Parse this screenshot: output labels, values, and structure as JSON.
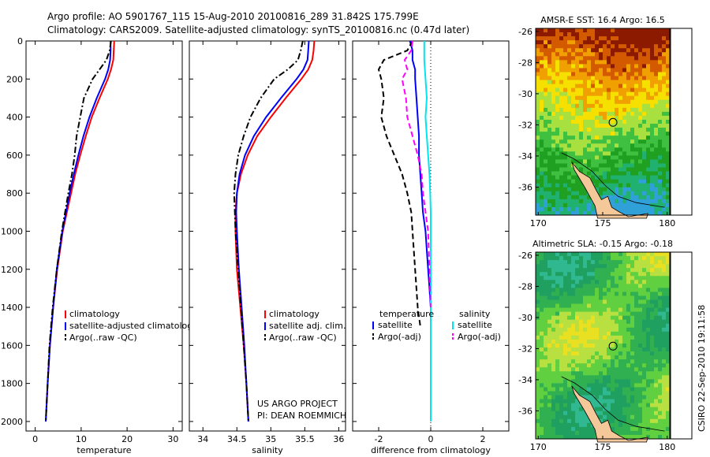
{
  "header": {
    "line1": "Argo profile: AO 5901767_115 15-Aug-2010 20100816_289 31.842S 175.799E",
    "line2": "Climatology: CARS2009. Satellite-adjusted climatology: synTS_20100816.nc (0.47d later)"
  },
  "credits": {
    "project": "US ARGO PROJECT",
    "pi": "PI: DEAN ROEMMICH",
    "stamp": "CSIRO 22-Sep-2010 19:11:58"
  },
  "colors": {
    "climatology": "#ff0000",
    "satellite": "#0000ff",
    "argo": "#000000",
    "sal_sat": "#00e5ee",
    "sal_argo": "#ff00ff"
  },
  "chart_data": [
    {
      "type": "line",
      "xlabel": "temperature",
      "x_ticks": [
        "0",
        "10",
        "20",
        "30"
      ],
      "y_ticks": [
        "0",
        "200",
        "400",
        "600",
        "800",
        "1000",
        "1200",
        "1400",
        "1600",
        "1800",
        "2000"
      ],
      "xlim": [
        -2,
        32
      ],
      "ylim": [
        0,
        2050
      ],
      "y_reversed": true,
      "legend": {
        "placement": "lower-right",
        "entries": [
          "climatology",
          "satellite-adjusted climatology",
          "Argo(..raw -QC)"
        ]
      },
      "series": [
        {
          "name": "climatology",
          "color": "#ff0000",
          "style": "solid",
          "depth": [
            0,
            50,
            100,
            150,
            200,
            300,
            400,
            500,
            600,
            700,
            800,
            900,
            1000,
            1200,
            1400,
            1600,
            1800,
            2000
          ],
          "values": [
            17.2,
            17.1,
            17.0,
            16.5,
            15.8,
            14.0,
            12.3,
            11.0,
            9.8,
            8.7,
            7.8,
            6.9,
            6.0,
            4.8,
            3.9,
            3.2,
            2.7,
            2.3
          ]
        },
        {
          "name": "satellite-adjusted climatology",
          "color": "#0000ff",
          "style": "solid",
          "depth": [
            0,
            50,
            100,
            150,
            200,
            300,
            400,
            500,
            600,
            700,
            800,
            900,
            1000,
            1200,
            1400,
            1600,
            1800,
            2000
          ],
          "values": [
            16.4,
            16.4,
            16.3,
            15.9,
            15.2,
            13.4,
            11.8,
            10.5,
            9.4,
            8.4,
            7.5,
            6.7,
            5.9,
            4.7,
            3.9,
            3.2,
            2.7,
            2.3
          ]
        },
        {
          "name": "Argo(..raw -QC)",
          "color": "#000000",
          "style": "dashdot",
          "depth": [
            0,
            50,
            100,
            150,
            200,
            300,
            400,
            500,
            600,
            700,
            800,
            900,
            1000,
            1200,
            1400,
            1600,
            1800,
            2000
          ],
          "values": [
            16.5,
            16.2,
            15.5,
            14.0,
            12.5,
            10.6,
            9.8,
            9.0,
            8.6,
            8.0,
            7.2,
            6.5,
            5.8,
            4.7,
            3.8,
            3.1,
            2.7,
            2.3
          ]
        }
      ]
    },
    {
      "type": "line",
      "xlabel": "salinity",
      "x_ticks": [
        "34",
        "34.5",
        "35",
        "35.5",
        "36"
      ],
      "xlim": [
        33.8,
        36.1
      ],
      "ylim": [
        0,
        2050
      ],
      "y_reversed": true,
      "legend": {
        "placement": "lower-right",
        "entries": [
          "climatology",
          "satellite adj. clim.",
          "Argo(..raw -QC)"
        ]
      },
      "series": [
        {
          "name": "climatology",
          "color": "#ff0000",
          "style": "solid",
          "depth": [
            0,
            50,
            100,
            150,
            200,
            300,
            400,
            500,
            600,
            700,
            800,
            900,
            1000,
            1200,
            1400,
            1600,
            1800,
            2000
          ],
          "values": [
            35.64,
            35.63,
            35.61,
            35.55,
            35.45,
            35.22,
            35.0,
            34.8,
            34.66,
            34.56,
            34.5,
            34.48,
            34.48,
            34.5,
            34.55,
            34.6,
            34.64,
            34.67
          ]
        },
        {
          "name": "satellite adj. clim.",
          "color": "#0000ff",
          "style": "solid",
          "depth": [
            0,
            50,
            100,
            150,
            200,
            300,
            400,
            500,
            600,
            700,
            800,
            900,
            1000,
            1200,
            1400,
            1600,
            1800,
            2000
          ],
          "values": [
            35.56,
            35.55,
            35.54,
            35.48,
            35.38,
            35.15,
            34.93,
            34.75,
            34.62,
            34.54,
            34.5,
            34.49,
            34.5,
            34.53,
            34.57,
            34.61,
            34.64,
            34.67
          ]
        },
        {
          "name": "Argo(..raw -QC)",
          "color": "#000000",
          "style": "dashdot",
          "depth": [
            0,
            50,
            100,
            150,
            200,
            300,
            400,
            500,
            600,
            700,
            800,
            900,
            1000,
            1200,
            1400,
            1600,
            1800,
            2000
          ],
          "values": [
            35.47,
            35.44,
            35.4,
            35.25,
            35.05,
            34.85,
            34.7,
            34.6,
            34.52,
            34.48,
            34.46,
            34.47,
            34.48,
            34.52,
            34.56,
            34.6,
            34.64,
            34.67
          ]
        }
      ]
    },
    {
      "type": "line",
      "xlabel": "difference from climatology",
      "x_ticks": [
        "-2",
        "0",
        "2"
      ],
      "xlim": [
        -3,
        3
      ],
      "ylim": [
        0,
        2050
      ],
      "y_reversed": true,
      "legend": {
        "placement": "lower-center",
        "headers": [
          "temperature",
          "salinity"
        ],
        "entries": [
          "satellite",
          "Argo(-adj)",
          "satellite",
          "Argo(-adj)"
        ]
      },
      "series": [
        {
          "name": "temperature satellite",
          "color": "#0000ff",
          "style": "solid",
          "depth": [
            0,
            50,
            100,
            150,
            200,
            300,
            400,
            500,
            600,
            700,
            800,
            900,
            1000,
            1100,
            1200,
            1300,
            1400
          ],
          "values": [
            -0.8,
            -0.7,
            -0.7,
            -0.6,
            -0.6,
            -0.55,
            -0.5,
            -0.45,
            -0.45,
            -0.4,
            -0.35,
            -0.3,
            -0.2,
            -0.15,
            -0.1,
            -0.05,
            0.0
          ]
        },
        {
          "name": "temperature Argo(-adj)",
          "color": "#000000",
          "style": "dashed",
          "depth": [
            0,
            50,
            100,
            150,
            200,
            300,
            400,
            500,
            600,
            700,
            800,
            900,
            1000,
            1200,
            1400,
            1500
          ],
          "values": [
            -0.7,
            -0.9,
            -1.8,
            -2.0,
            -1.9,
            -1.8,
            -1.9,
            -1.7,
            -1.4,
            -1.1,
            -0.9,
            -0.75,
            -0.7,
            -0.6,
            -0.5,
            -0.4
          ]
        },
        {
          "name": "salinity satellite",
          "color": "#00e5ee",
          "style": "solid",
          "depth": [
            0,
            50,
            100,
            200,
            300,
            400,
            500,
            600,
            700,
            800,
            900,
            1000,
            1200,
            1400,
            1600,
            1800,
            2000
          ],
          "values": [
            -0.25,
            -0.25,
            -0.25,
            -0.2,
            -0.15,
            -0.2,
            -0.15,
            -0.1,
            -0.05,
            -0.02,
            0,
            0,
            0,
            0,
            0,
            0,
            0
          ]
        },
        {
          "name": "salinity Argo(-adj)",
          "color": "#ff00ff",
          "style": "dashed",
          "depth": [
            0,
            50,
            100,
            150,
            200,
            300,
            400,
            500,
            600,
            700,
            800,
            900,
            1000,
            1200,
            1400
          ],
          "values": [
            -0.7,
            -0.75,
            -1.0,
            -0.9,
            -1.1,
            -0.95,
            -0.9,
            -0.7,
            -0.5,
            -0.35,
            -0.3,
            -0.2,
            -0.1,
            -0.05,
            0.0
          ]
        }
      ]
    }
  ],
  "maps": [
    {
      "title": "AMSR-E SST: 16.4  Argo: 16.5",
      "x_ticks": [
        "170",
        "175",
        "180"
      ],
      "y_ticks": [
        "-26",
        "-28",
        "-30",
        "-32",
        "-34",
        "-36"
      ],
      "palette": [
        "#8b1a00",
        "#d45a00",
        "#f0a000",
        "#f5e000",
        "#a8e040",
        "#40c040",
        "#20a020",
        "#20b070",
        "#30a0d8"
      ],
      "profile": {
        "lon": 175.8,
        "lat": -31.84
      }
    },
    {
      "title": "Altimetric SLA: -0.15  Argo: -0.18",
      "x_ticks": [
        "170",
        "175",
        "180"
      ],
      "y_ticks": [
        "-26",
        "-28",
        "-30",
        "-32",
        "-34",
        "-36"
      ],
      "palette": [
        "#e8e020",
        "#b8e040",
        "#60d040",
        "#30b050",
        "#20a060",
        "#30b890"
      ],
      "profile": {
        "lon": 175.8,
        "lat": -31.84
      }
    }
  ]
}
